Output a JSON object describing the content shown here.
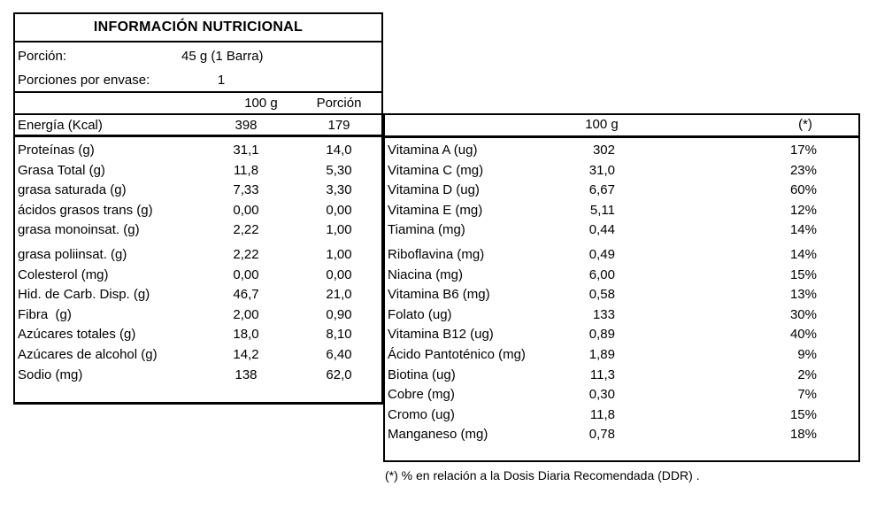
{
  "title": "INFORMACIÓN NUTRICIONAL",
  "serving": {
    "label": "Porción:",
    "value": "45 g (1 Barra)"
  },
  "servings_per_pack": {
    "label": "Porciones por envase:",
    "value": "1"
  },
  "main_table": {
    "headers": [
      "100 g",
      "Porción"
    ],
    "energy": {
      "label": "Energía (Kcal)",
      "per_100g": "398",
      "per_serving": "179"
    },
    "rows": [
      {
        "label": "Proteínas (g)",
        "per_100g": "31,1",
        "per_serving": "14,0"
      },
      {
        "label": "Grasa Total (g)",
        "per_100g": "11,8",
        "per_serving": "5,30"
      },
      {
        "label": "grasa saturada (g)",
        "per_100g": "7,33",
        "per_serving": "3,30"
      },
      {
        "label": "ácidos grasos trans (g)",
        "per_100g": "0,00",
        "per_serving": "0,00"
      },
      {
        "label": "grasa monoinsat. (g)",
        "per_100g": "2,22",
        "per_serving": "1,00"
      },
      {
        "label": "grasa poliinsat. (g)",
        "per_100g": "2,22",
        "per_serving": "1,00"
      },
      {
        "label": "Colesterol (mg)",
        "per_100g": "0,00",
        "per_serving": "0,00"
      },
      {
        "label": "Hid. de Carb. Disp. (g)",
        "per_100g": "46,7",
        "per_serving": "21,0"
      },
      {
        "label": "Fibra  (g)",
        "per_100g": "2,00",
        "per_serving": "0,90"
      },
      {
        "label": "Azúcares totales (g)",
        "per_100g": "18,0",
        "per_serving": "8,10"
      },
      {
        "label": "Azúcares de alcohol (g)",
        "per_100g": "14,2",
        "per_serving": "6,40"
      },
      {
        "label": "Sodio (mg)",
        "per_100g": "138",
        "per_serving": "62,0"
      }
    ]
  },
  "micro_table": {
    "headers": [
      "100 g",
      "(*)"
    ],
    "rows": [
      {
        "label": "Vitamina A (ug)",
        "per_100g": "302",
        "ddr_pct": "17%"
      },
      {
        "label": "Vitamina C (mg)",
        "per_100g": "31,0",
        "ddr_pct": "23%"
      },
      {
        "label": "Vitamina D (ug)",
        "per_100g": "6,67",
        "ddr_pct": "60%"
      },
      {
        "label": "Vitamina E (mg)",
        "per_100g": "5,11",
        "ddr_pct": "12%"
      },
      {
        "label": "Tiamina (mg)",
        "per_100g": "0,44",
        "ddr_pct": "14%"
      },
      {
        "label": "Riboflavina (mg)",
        "per_100g": "0,49",
        "ddr_pct": "14%"
      },
      {
        "label": "Niacina (mg)",
        "per_100g": "6,00",
        "ddr_pct": "15%"
      },
      {
        "label": "Vitamina B6 (mg)",
        "per_100g": "0,58",
        "ddr_pct": "13%"
      },
      {
        "label": "Folato (ug)",
        "per_100g": "133",
        "ddr_pct": "30%"
      },
      {
        "label": "Vitamina B12 (ug)",
        "per_100g": "0,89",
        "ddr_pct": "40%"
      },
      {
        "label": "Ácido Pantoténico (mg)",
        "per_100g": "1,89",
        "ddr_pct": "9%"
      },
      {
        "label": "Biotina (ug)",
        "per_100g": "11,3",
        "ddr_pct": "2%"
      },
      {
        "label": "Cobre (mg)",
        "per_100g": "0,30",
        "ddr_pct": "7%"
      },
      {
        "label": "Cromo (ug)",
        "per_100g": "11,8",
        "ddr_pct": "15%"
      },
      {
        "label": "Manganeso (mg)",
        "per_100g": "0,78",
        "ddr_pct": "18%"
      }
    ]
  },
  "footnote": "(*) % en relación a la Dosis Diaria Recomendada (DDR) ."
}
